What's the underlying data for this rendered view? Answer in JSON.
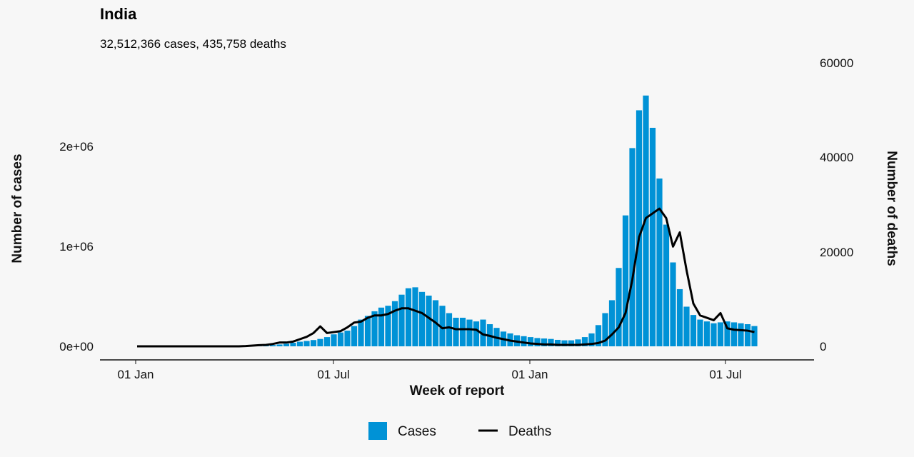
{
  "chart_data": {
    "type": "bar+line",
    "title": "India",
    "subtitle": "32,512,366 cases, 435,758 deaths",
    "xlabel": "Week of report",
    "ylabel_left": "Number of cases",
    "ylabel_right": "Number of deaths",
    "x_ticks": [
      "01 Jan",
      "01 Jul",
      "01 Jan",
      "01 Jul"
    ],
    "y_left_ticks": [
      "0e+00",
      "1e+06",
      "2e+06"
    ],
    "y_right_ticks": [
      "0",
      "20000",
      "40000",
      "60000"
    ],
    "ylim_left": [
      0,
      2850000
    ],
    "ylim_right": [
      0,
      60000
    ],
    "grid": false,
    "legend_position": "bottom",
    "colors": {
      "cases": "#0092d6",
      "deaths": "#000000"
    },
    "series": [
      {
        "name": "Cases",
        "kind": "bar",
        "values": [
          0,
          0,
          0,
          0,
          0,
          0,
          0,
          0,
          0,
          0,
          0,
          0,
          0,
          0,
          0,
          0,
          0,
          0,
          3000,
          8000,
          14000,
          20000,
          28000,
          38000,
          50000,
          58000,
          68000,
          80000,
          100000,
          130000,
          150000,
          170000,
          220000,
          290000,
          330000,
          380000,
          420000,
          440000,
          490000,
          560000,
          630000,
          640000,
          590000,
          550000,
          500000,
          440000,
          360000,
          310000,
          310000,
          290000,
          270000,
          290000,
          240000,
          200000,
          160000,
          140000,
          120000,
          110000,
          100000,
          90000,
          85000,
          80000,
          70000,
          65000,
          65000,
          75000,
          100000,
          140000,
          230000,
          360000,
          500000,
          850000,
          1420000,
          2150000,
          2560000,
          2720000,
          2370000,
          1820000,
          1320000,
          910000,
          620000,
          430000,
          340000,
          290000,
          270000,
          250000,
          260000,
          270000,
          260000,
          250000,
          240000,
          220000
        ]
      },
      {
        "name": "Deaths",
        "kind": "line",
        "values": [
          0,
          0,
          0,
          0,
          0,
          0,
          0,
          0,
          0,
          0,
          0,
          0,
          0,
          0,
          0,
          0,
          50,
          150,
          250,
          300,
          500,
          800,
          800,
          1000,
          1500,
          2000,
          2800,
          4200,
          2800,
          3000,
          3200,
          4000,
          5000,
          5200,
          6000,
          6500,
          6500,
          6800,
          7500,
          8000,
          8000,
          7500,
          7000,
          6000,
          5000,
          3800,
          4000,
          3600,
          3600,
          3600,
          3500,
          2500,
          2200,
          1800,
          1500,
          1200,
          1000,
          800,
          600,
          500,
          400,
          400,
          300,
          300,
          300,
          300,
          400,
          500,
          700,
          1200,
          2500,
          4000,
          7000,
          14000,
          23000,
          27000,
          28000,
          29000,
          27000,
          21000,
          24000,
          16000,
          9000,
          6500,
          6000,
          5500,
          7000,
          3800,
          3500,
          3400,
          3300,
          3000
        ]
      }
    ]
  }
}
